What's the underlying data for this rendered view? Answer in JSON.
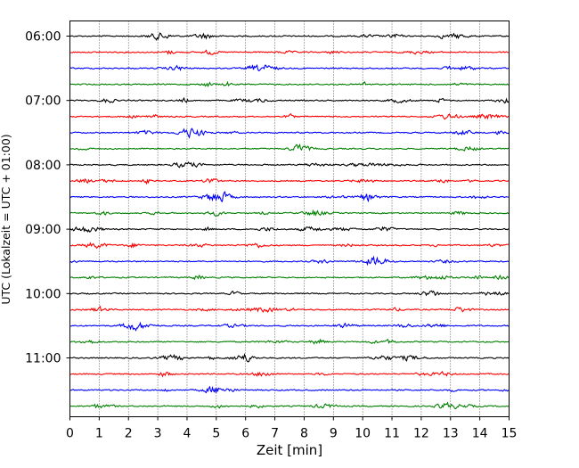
{
  "chart_data": {
    "type": "line",
    "title": "",
    "xlabel": "Zeit  [min]",
    "ylabel": "UTC (Lokalzeit = UTC + 01:00)",
    "xlim": [
      0,
      15
    ],
    "x_ticks": [
      "0",
      "1",
      "2",
      "3",
      "4",
      "5",
      "6",
      "7",
      "8",
      "9",
      "10",
      "11",
      "12",
      "13",
      "14",
      "15"
    ],
    "y_tick_labels": [
      "06:00",
      "07:00",
      "08:00",
      "09:00",
      "10:00",
      "11:00"
    ],
    "grid": "vertical dotted lines at each minute",
    "legend": "none",
    "trace_interval_min": 15,
    "trace_count": 24,
    "first_trace": "06:00",
    "last_trace": "11:45",
    "color_cycle": [
      "#000000",
      "#ff0000",
      "#0000ff",
      "#008000"
    ],
    "series_type": "seismic helicorder traces (ground motion, small-amplitude noise)"
  }
}
